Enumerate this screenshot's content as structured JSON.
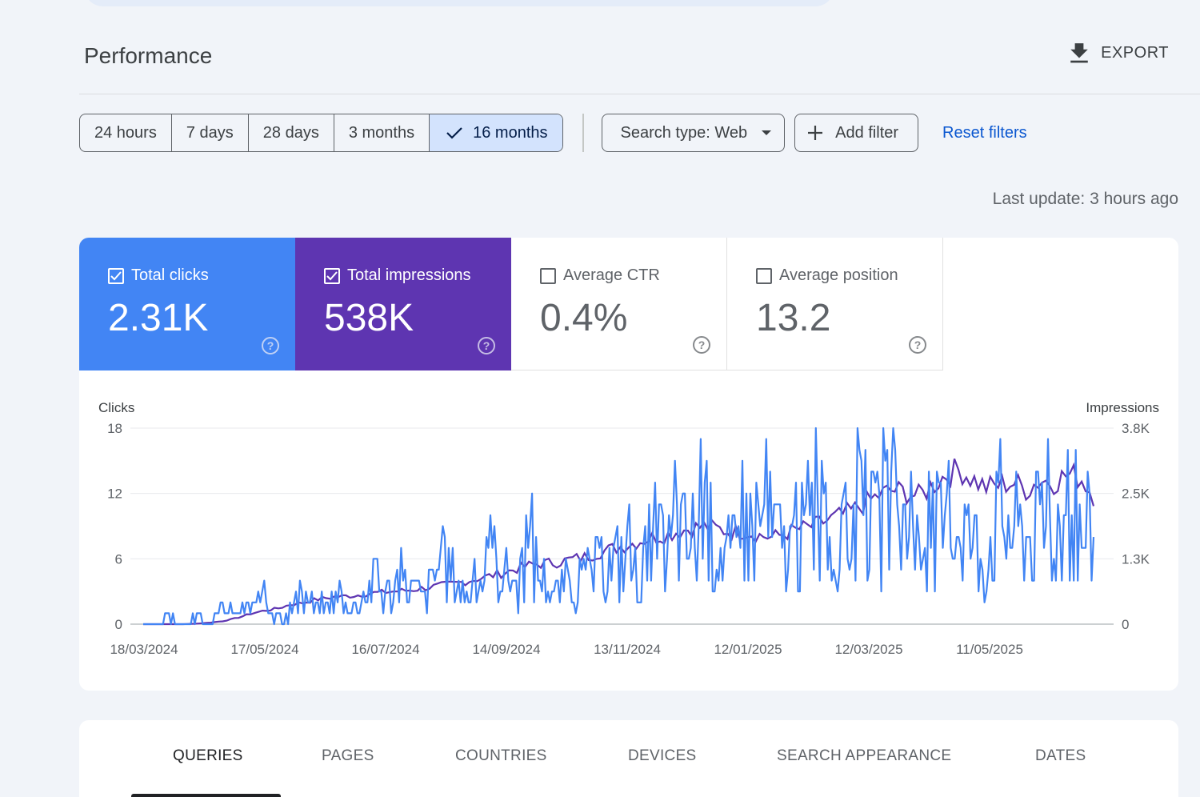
{
  "header": {
    "title": "Performance",
    "export_label": "EXPORT",
    "export_icon": "download-icon"
  },
  "filters": {
    "ranges": [
      "24 hours",
      "7 days",
      "28 days",
      "3 months",
      "16 months"
    ],
    "active_range": "16 months",
    "search_type": "Search type: Web",
    "add_filter": "Add filter",
    "reset": "Reset filters"
  },
  "last_update": "Last update: 3 hours ago",
  "metrics": {
    "clicks": {
      "label": "Total clicks",
      "value": "2.31K",
      "checked": true,
      "color": "#4285f4"
    },
    "impressions": {
      "label": "Total impressions",
      "value": "538K",
      "checked": true,
      "color": "#5e35b1"
    },
    "ctr": {
      "label": "Average CTR",
      "value": "0.4%",
      "checked": false
    },
    "position": {
      "label": "Average position",
      "value": "13.2",
      "checked": false
    }
  },
  "chart_data": {
    "type": "line",
    "left_axis_title": "Clicks",
    "right_axis_title": "Impressions",
    "left_ticks": [
      "18",
      "12",
      "6",
      "0"
    ],
    "right_ticks": [
      "3.8K",
      "2.5K",
      "1.3K",
      "0"
    ],
    "ylim_left": [
      0,
      18
    ],
    "ylim_right": [
      0,
      3800
    ],
    "x_tick_labels": [
      "18/03/2024",
      "17/05/2024",
      "16/07/2024",
      "14/09/2024",
      "13/11/2024",
      "12/01/2025",
      "12/03/2025",
      "11/05/2025"
    ],
    "series": [
      {
        "name": "Clicks",
        "axis": "left",
        "color": "#4285f4",
        "values_weekly": [
          0,
          0,
          1,
          0,
          1,
          0,
          2,
          1,
          2,
          3,
          1,
          2,
          4,
          2,
          3,
          3,
          2,
          5,
          4,
          6,
          5,
          3,
          8,
          7,
          4,
          5,
          9,
          7,
          5,
          9,
          6,
          4,
          5,
          6,
          7,
          8,
          9,
          6,
          10,
          9,
          12,
          11,
          13,
          10,
          9,
          12,
          14,
          12,
          10,
          11,
          15,
          11,
          9,
          14,
          13,
          12,
          16,
          12,
          10,
          13,
          12,
          14,
          11,
          9,
          15,
          13,
          12,
          13,
          12,
          14,
          11,
          13
        ]
      },
      {
        "name": "Impressions",
        "axis": "right",
        "color": "#5e35b1",
        "values_weekly": [
          0,
          0,
          0,
          0,
          10,
          30,
          60,
          120,
          200,
          260,
          300,
          380,
          420,
          480,
          520,
          540,
          560,
          600,
          620,
          640,
          660,
          700,
          740,
          780,
          820,
          880,
          940,
          1000,
          1080,
          1150,
          1180,
          1200,
          1260,
          1300,
          1380,
          1460,
          1520,
          1600,
          1680,
          1720,
          1800,
          1860,
          1900,
          1840,
          1780,
          1800,
          1720,
          1680,
          1760,
          1840,
          1900,
          2000,
          2100,
          2200,
          2350,
          2500,
          2600,
          2550,
          2480,
          2700,
          2900,
          3000,
          2800,
          2650,
          2700,
          2750,
          2600,
          2800,
          2750,
          2900,
          2850,
          2500
        ]
      }
    ]
  },
  "tabs": [
    "QUERIES",
    "PAGES",
    "COUNTRIES",
    "DEVICES",
    "SEARCH APPEARANCE",
    "DATES"
  ],
  "active_tab": "QUERIES"
}
